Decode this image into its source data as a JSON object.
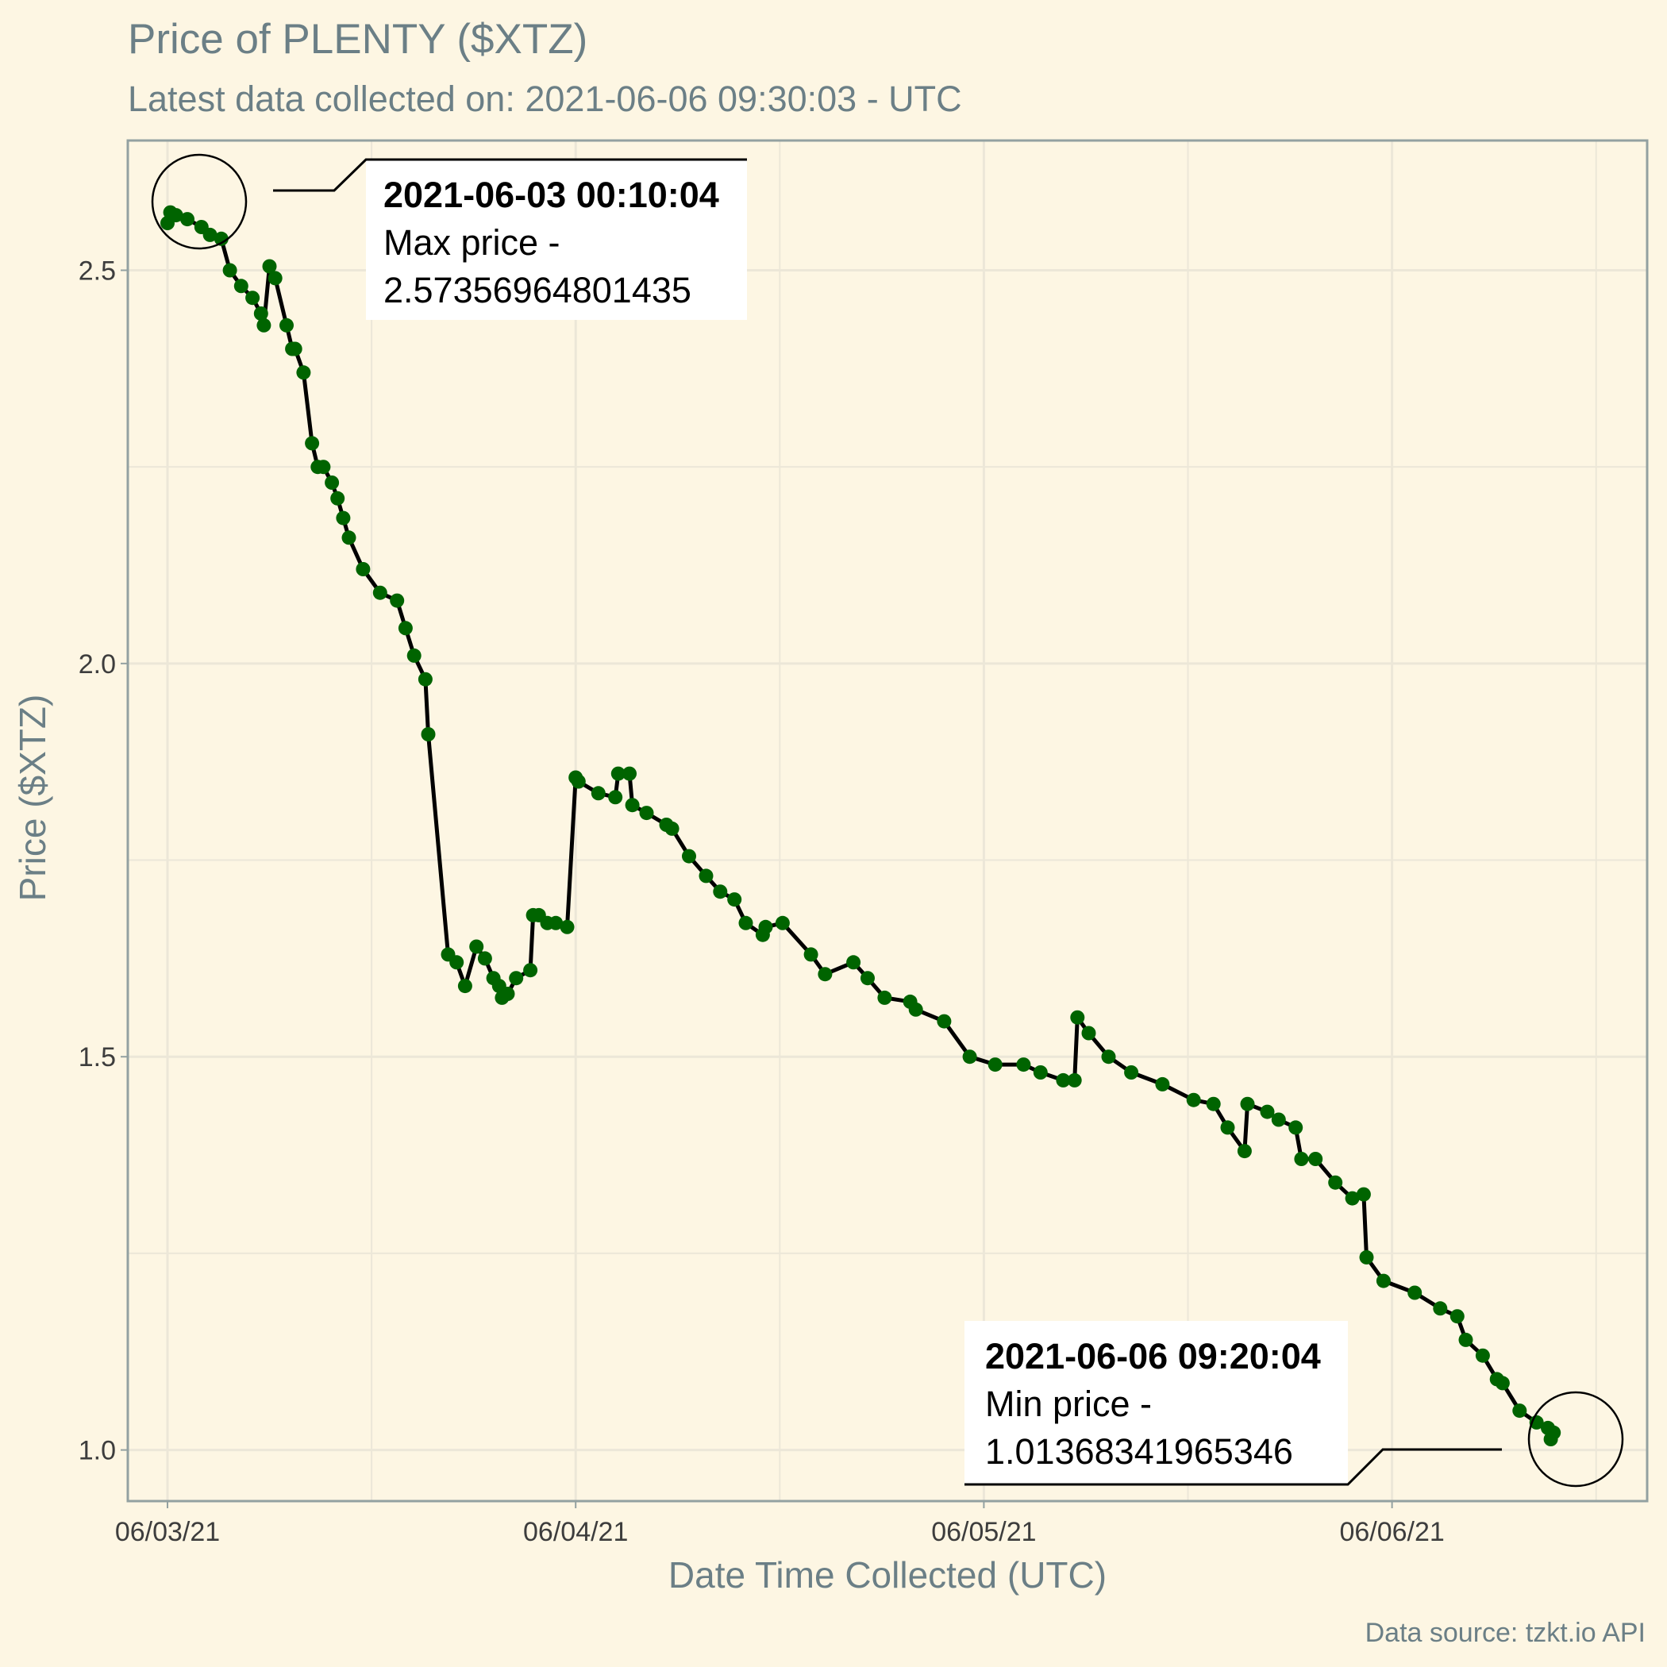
{
  "colors": {
    "background": "#fdf6e3",
    "panel_border": "#93a1a1",
    "grid": "#ece7d8",
    "line": "#000000",
    "points": "#006400",
    "text_muted": "#6b7f86"
  },
  "chart_data": {
    "type": "line",
    "title": "Price of PLENTY ($XTZ)",
    "subtitle": "Latest data collected on: 2021-06-06 09:30:03  - UTC",
    "xlabel": "Date Time Collected (UTC)",
    "ylabel": "Price ($XTZ)",
    "caption": "Data source: tzkt.io API",
    "x_ticks": [
      "06/03/21",
      "06/04/21",
      "06/05/21",
      "06/06/21"
    ],
    "y_ticks": [
      "1.0",
      "1.5",
      "2.0",
      "2.5"
    ],
    "xlim": [
      "2021-06-02 21:40",
      "2021-06-06 15:00"
    ],
    "ylim": [
      0.935,
      2.665
    ],
    "grid": true,
    "legend": "none",
    "series": [
      {
        "x": [
          "2021-06-03 00:00",
          "2021-06-03 00:10",
          "2021-06-03 00:30",
          "2021-06-03 01:10",
          "2021-06-03 02:00",
          "2021-06-03 02:30",
          "2021-06-03 03:10",
          "2021-06-03 03:40",
          "2021-06-03 04:20",
          "2021-06-03 05:00",
          "2021-06-03 05:30",
          "2021-06-03 05:40",
          "2021-06-03 06:00",
          "2021-06-03 06:20",
          "2021-06-03 07:00",
          "2021-06-03 07:20",
          "2021-06-03 07:30",
          "2021-06-03 08:00",
          "2021-06-03 08:30",
          "2021-06-03 08:50",
          "2021-06-03 09:10",
          "2021-06-03 09:40",
          "2021-06-03 10:00",
          "2021-06-03 10:20",
          "2021-06-03 10:40",
          "2021-06-03 11:30",
          "2021-06-03 12:30",
          "2021-06-03 13:30",
          "2021-06-03 14:00",
          "2021-06-03 14:30",
          "2021-06-03 15:10",
          "2021-06-03 15:20",
          "2021-06-03 16:30",
          "2021-06-03 17:00",
          "2021-06-03 17:30",
          "2021-06-03 18:10",
          "2021-06-03 18:40",
          "2021-06-03 19:10",
          "2021-06-03 19:30",
          "2021-06-03 19:40",
          "2021-06-03 20:00",
          "2021-06-03 20:30",
          "2021-06-03 21:20",
          "2021-06-03 21:30",
          "2021-06-03 21:50",
          "2021-06-03 22:20",
          "2021-06-03 22:50",
          "2021-06-03 23:30",
          "2021-06-04 00:00",
          "2021-06-04 00:10",
          "2021-06-04 01:20",
          "2021-06-04 02:20",
          "2021-06-04 02:30",
          "2021-06-04 03:10",
          "2021-06-04 03:20",
          "2021-06-04 04:10",
          "2021-06-04 05:20",
          "2021-06-04 05:40",
          "2021-06-04 06:40",
          "2021-06-04 07:40",
          "2021-06-04 08:30",
          "2021-06-04 09:20",
          "2021-06-04 10:00",
          "2021-06-04 11:00",
          "2021-06-04 11:10",
          "2021-06-04 12:10",
          "2021-06-04 13:50",
          "2021-06-04 14:40",
          "2021-06-04 16:20",
          "2021-06-04 17:10",
          "2021-06-04 18:10",
          "2021-06-04 19:40",
          "2021-06-04 20:00",
          "2021-06-04 21:40",
          "2021-06-04 23:10",
          "2021-06-05 00:40",
          "2021-06-05 02:20",
          "2021-06-05 03:20",
          "2021-06-05 04:40",
          "2021-06-05 05:20",
          "2021-06-05 05:30",
          "2021-06-05 06:10",
          "2021-06-05 07:20",
          "2021-06-05 08:40",
          "2021-06-05 10:30",
          "2021-06-05 12:20",
          "2021-06-05 13:30",
          "2021-06-05 14:20",
          "2021-06-05 15:20",
          "2021-06-05 15:30",
          "2021-06-05 16:40",
          "2021-06-05 17:20",
          "2021-06-05 18:20",
          "2021-06-05 18:40",
          "2021-06-05 19:30",
          "2021-06-05 20:40",
          "2021-06-05 21:40",
          "2021-06-05 22:20",
          "2021-06-05 22:30",
          "2021-06-05 23:30",
          "2021-06-06 01:20",
          "2021-06-06 02:50",
          "2021-06-06 03:50",
          "2021-06-06 04:20",
          "2021-06-06 05:20",
          "2021-06-06 06:10",
          "2021-06-06 06:30",
          "2021-06-06 07:30",
          "2021-06-06 08:30",
          "2021-06-06 09:10",
          "2021-06-06 09:20",
          "2021-06-06 09:30"
        ],
        "values": [
          2.56,
          2.5736,
          2.57,
          2.565,
          2.555,
          2.545,
          2.54,
          2.5,
          2.48,
          2.465,
          2.445,
          2.43,
          2.505,
          2.49,
          2.43,
          2.4,
          2.4,
          2.37,
          2.28,
          2.25,
          2.25,
          2.23,
          2.21,
          2.185,
          2.16,
          2.12,
          2.09,
          2.08,
          2.045,
          2.01,
          1.98,
          1.91,
          1.63,
          1.62,
          1.59,
          1.64,
          1.625,
          1.6,
          1.59,
          1.575,
          1.58,
          1.6,
          1.61,
          1.68,
          1.68,
          1.67,
          1.67,
          1.665,
          1.855,
          1.85,
          1.835,
          1.83,
          1.86,
          1.86,
          1.82,
          1.81,
          1.795,
          1.79,
          1.755,
          1.73,
          1.71,
          1.7,
          1.67,
          1.655,
          1.665,
          1.67,
          1.63,
          1.605,
          1.62,
          1.6,
          1.575,
          1.57,
          1.56,
          1.545,
          1.5,
          1.49,
          1.49,
          1.48,
          1.47,
          1.47,
          1.55,
          1.53,
          1.5,
          1.48,
          1.465,
          1.445,
          1.44,
          1.41,
          1.38,
          1.44,
          1.43,
          1.42,
          1.41,
          1.37,
          1.37,
          1.34,
          1.32,
          1.325,
          1.245,
          1.215,
          1.2,
          1.18,
          1.17,
          1.14,
          1.12,
          1.09,
          1.085,
          1.05,
          1.035,
          1.028,
          1.0137,
          1.022
        ]
      }
    ],
    "annotations": [
      {
        "kind": "max",
        "timestamp_label": "2021-06-03 00:10:04",
        "text_line1": "Max price -",
        "text_line2": "2.57356964801435",
        "point_x": "2021-06-03 00:10",
        "point_y": 2.5736
      },
      {
        "kind": "min",
        "timestamp_label": "2021-06-06 09:20:04",
        "text_line1": "Min price -",
        "text_line2": "1.01368341965346",
        "point_x": "2021-06-06 09:20",
        "point_y": 1.0137
      }
    ]
  }
}
